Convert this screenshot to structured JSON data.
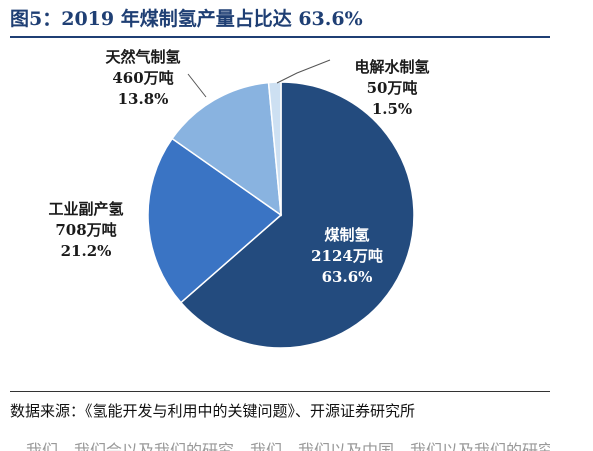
{
  "figure": {
    "title": "图5：2019 年煤制氢产量占比达 63.6%",
    "source": "数据来源：《氢能开发与利用中的关键问题》、开源证券研究所",
    "faint_line": "。我们，我们会以及我们的研究。我们，我们以及中国，我们以及我们的研究"
  },
  "chart_data": {
    "type": "pie",
    "title": "",
    "unit": "万吨",
    "start_angle_deg": 0,
    "direction": "clockwise",
    "slices": [
      {
        "label": "煤制氢",
        "value": 2124,
        "value_text": "2124万吨",
        "percent_text": "63.6%",
        "color": "#234b7e",
        "label_color": "#ffffff"
      },
      {
        "label": "工业副产氢",
        "value": 708,
        "value_text": "708万吨",
        "percent_text": "21.2%",
        "color": "#3a74c4",
        "label_color": "#1a1a1a"
      },
      {
        "label": "天然气制氢",
        "value": 460,
        "value_text": "460万吨",
        "percent_text": "13.8%",
        "color": "#89b3e0",
        "label_color": "#1a1a1a"
      },
      {
        "label": "电解水制氢",
        "value": 50,
        "value_text": "50万吨",
        "percent_text": "1.5%",
        "color": "#cde0f2",
        "label_color": "#1a1a1a"
      }
    ]
  }
}
